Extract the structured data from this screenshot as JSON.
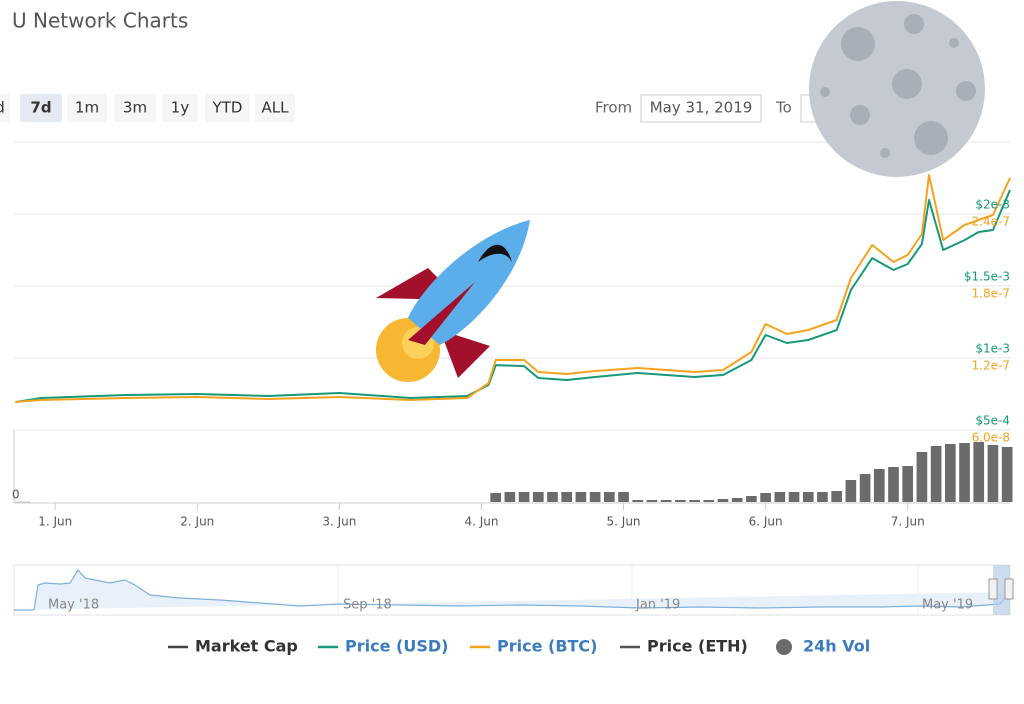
{
  "header": {
    "title": "U Network Charts"
  },
  "zoom_buttons": [
    "d",
    "7d",
    "1m",
    "3m",
    "1y",
    "YTD",
    "ALL"
  ],
  "range": {
    "from_label": "From",
    "from": "May 31, 2019",
    "to_label": "To"
  },
  "chart_data": {
    "type": "line",
    "x": [
      0.72,
      0.9,
      1.5,
      2.0,
      2.5,
      3.0,
      3.5,
      3.9,
      4.05,
      4.1,
      4.3,
      4.4,
      4.6,
      4.8,
      5.1,
      5.5,
      5.7,
      5.9,
      6.0,
      6.15,
      6.3,
      6.5,
      6.6,
      6.75,
      6.9,
      7.0,
      7.1,
      7.15,
      7.25,
      7.4,
      7.5,
      7.6,
      7.72
    ],
    "xlim": [
      0.71,
      7.72
    ],
    "xticks": [
      {
        "value": 1,
        "label": "1. Jun"
      },
      {
        "value": 2,
        "label": "2. Jun"
      },
      {
        "value": 3,
        "label": "3. Jun"
      },
      {
        "value": 4,
        "label": "4. Jun"
      },
      {
        "value": 5,
        "label": "5. Jun"
      },
      {
        "value": 6,
        "label": "6. Jun"
      },
      {
        "value": 7,
        "label": "7. Jun"
      }
    ],
    "ylim": [
      0.0005,
      0.0025
    ],
    "yticks": [
      {
        "value": 0.002,
        "label": "$2e-3"
      },
      {
        "value": 0.0015,
        "label": "$1.5e-3"
      },
      {
        "value": 0.001,
        "label": "$1e-3"
      },
      {
        "value": 0.0005,
        "label": "$5e-4"
      }
    ],
    "y2lim": [
      6e-08,
      3e-07
    ],
    "y2ticks": [
      2.4e-07,
      1.8e-07,
      1.2e-07,
      {
        "value": 6e-08,
        "label": "6.0e-8"
      }
    ],
    "grid": true,
    "series": [
      {
        "name": "Price (USD)",
        "color": "#16997a",
        "values": [
          0.000694,
          0.000722,
          0.000743,
          0.00075,
          0.000736,
          0.000757,
          0.000722,
          0.000736,
          0.000813,
          0.000951,
          0.000944,
          0.000861,
          0.000847,
          0.000868,
          0.000896,
          0.000868,
          0.000882,
          0.000986,
          0.00116,
          0.001104,
          0.001125,
          0.001194,
          0.001472,
          0.001694,
          0.001611,
          0.001653,
          0.001792,
          0.002097,
          0.00175,
          0.001819,
          0.001875,
          0.001889,
          0.002167
        ]
      },
      {
        "name": "Price (BTC)",
        "color": "#f5a31e",
        "axis": "y2",
        "values": [
          8.33e-08,
          8.5e-08,
          8.67e-08,
          8.75e-08,
          8.58e-08,
          8.75e-08,
          8.5e-08,
          8.67e-08,
          9.92e-08,
          1.183e-07,
          1.183e-07,
          1.083e-07,
          1.067e-07,
          1.092e-07,
          1.117e-07,
          1.083e-07,
          1.1e-07,
          1.25e-07,
          1.483e-07,
          1.4e-07,
          1.433e-07,
          1.517e-07,
          1.867e-07,
          2.142e-07,
          2e-07,
          2.058e-07,
          2.233e-07,
          2.725e-07,
          2.183e-07,
          2.308e-07,
          2.35e-07,
          2.392e-07,
          2.7e-07
        ]
      }
    ],
    "volume": {
      "name": "24h Vol",
      "color": "#6b6b6b",
      "x": [
        4.1,
        4.2,
        4.3,
        4.4,
        4.5,
        4.6,
        4.7,
        4.8,
        4.9,
        5.0,
        5.1,
        5.2,
        5.3,
        5.4,
        5.5,
        5.6,
        5.7,
        5.8,
        5.9,
        6.0,
        6.1,
        6.2,
        6.3,
        6.4,
        6.5,
        6.6,
        6.7,
        6.8,
        6.9,
        7.0,
        7.1,
        7.2,
        7.3,
        7.4,
        7.5,
        7.6,
        7.7
      ],
      "values": [
        9,
        10,
        10,
        10,
        10,
        10,
        10,
        10,
        10,
        10,
        2,
        2,
        2,
        2,
        2,
        2,
        3,
        4,
        6,
        9,
        10,
        10,
        10,
        10,
        11,
        22,
        28,
        33,
        35,
        36,
        50,
        56,
        58,
        59,
        60,
        57,
        55
      ],
      "ylim": [
        0,
        72
      ],
      "yticks": [
        0
      ]
    },
    "hidden_series": [
      {
        "name": "Market Cap",
        "color": "#444444"
      },
      {
        "name": "Price (ETH)",
        "color": "#555555"
      }
    ],
    "navigator": {
      "labels": [
        "May '18",
        "Sep '18",
        "Jan '19",
        "May '19"
      ]
    }
  }
}
